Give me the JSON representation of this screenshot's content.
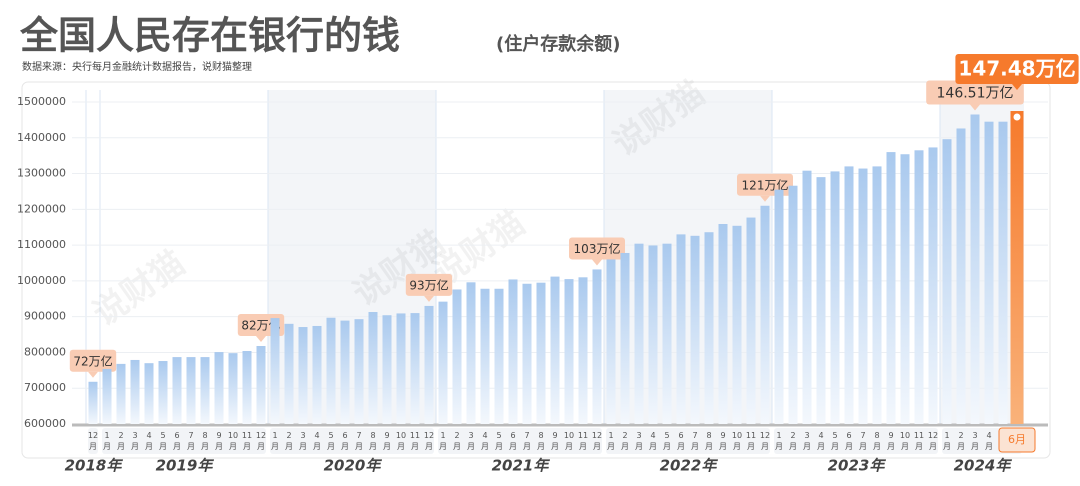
{
  "chart_data": {
    "type": "bar",
    "title": "全国人民存在银行的钱",
    "subtitle": "(住户存款余额)",
    "source": "数据来源：央行每月金融统计数据报告，说财猫整理",
    "watermark": "说财猫",
    "color": "#a9c9ee",
    "highlight_color": "#f67a2c",
    "ylim": [
      600000,
      1500000
    ],
    "yticks": [
      600000,
      700000,
      800000,
      900000,
      1000000,
      1100000,
      1200000,
      1300000,
      1400000,
      1500000
    ],
    "grid": true,
    "groups": [
      {
        "label": "2018年",
        "categories": [
          "12月"
        ],
        "values": [
          718000
        ],
        "value_labels": [
          "72万亿"
        ]
      },
      {
        "label": "2019年",
        "categories": [
          "1月",
          "2月",
          "3月",
          "4月",
          "5月",
          "6月",
          "7月",
          "8月",
          "9月",
          "10月",
          "11月",
          "12月"
        ],
        "values": [
          754000,
          768000,
          779000,
          770000,
          776000,
          787000,
          787000,
          787000,
          801000,
          798000,
          804000,
          818000
        ],
        "value_labels": [
          null,
          null,
          null,
          null,
          null,
          null,
          null,
          null,
          null,
          null,
          null,
          "82万亿"
        ]
      },
      {
        "label": "2020年",
        "categories": [
          "1月",
          "2月",
          "3月",
          "4月",
          "5月",
          "6月",
          "7月",
          "8月",
          "9月",
          "10月",
          "11月",
          "12月"
        ],
        "values": [
          896000,
          880000,
          871000,
          874000,
          897000,
          889000,
          893000,
          913000,
          904000,
          909000,
          910000,
          930000
        ],
        "value_labels": [
          null,
          null,
          null,
          null,
          null,
          null,
          null,
          null,
          null,
          null,
          null,
          "93万亿"
        ]
      },
      {
        "label": "2021年",
        "categories": [
          "1月",
          "2月",
          "3月",
          "4月",
          "5月",
          "6月",
          "7月",
          "8月",
          "9月",
          "10月",
          "11月",
          "12月"
        ],
        "values": [
          942000,
          976000,
          996000,
          978000,
          978000,
          1004000,
          992000,
          995000,
          1012000,
          1005000,
          1010000,
          1032000
        ],
        "value_labels": [
          null,
          null,
          null,
          null,
          null,
          null,
          null,
          null,
          null,
          null,
          null,
          "103万亿"
        ]
      },
      {
        "label": "2022年",
        "categories": [
          "1月",
          "2月",
          "3月",
          "4月",
          "5月",
          "6月",
          "7月",
          "8月",
          "9月",
          "10月",
          "11月",
          "12月"
        ],
        "values": [
          1060000,
          1078000,
          1104000,
          1099000,
          1104000,
          1130000,
          1126000,
          1136000,
          1159000,
          1154000,
          1177000,
          1210000
        ],
        "value_labels": [
          null,
          null,
          null,
          null,
          null,
          null,
          null,
          null,
          null,
          null,
          null,
          "121万亿"
        ]
      },
      {
        "label": "2023年",
        "categories": [
          "1月",
          "2月",
          "3月",
          "4月",
          "5月",
          "6月",
          "7月",
          "8月",
          "9月",
          "10月",
          "11月",
          "12月"
        ],
        "values": [
          1255000,
          1266000,
          1308000,
          1290000,
          1306000,
          1320000,
          1314000,
          1320000,
          1360000,
          1354000,
          1365000,
          1373000
        ],
        "value_labels": [
          null,
          null,
          null,
          null,
          null,
          null,
          null,
          null,
          null,
          null,
          null,
          null
        ]
      },
      {
        "label": "2024年",
        "categories": [
          "1月",
          "2月",
          "3月",
          "4月",
          "5月",
          "6月"
        ],
        "values": [
          1396000,
          1426000,
          1465100,
          1445000,
          1445000,
          1474800
        ],
        "value_labels": [
          null,
          null,
          "146.51万亿",
          null,
          null,
          "147.48万亿"
        ]
      }
    ]
  }
}
